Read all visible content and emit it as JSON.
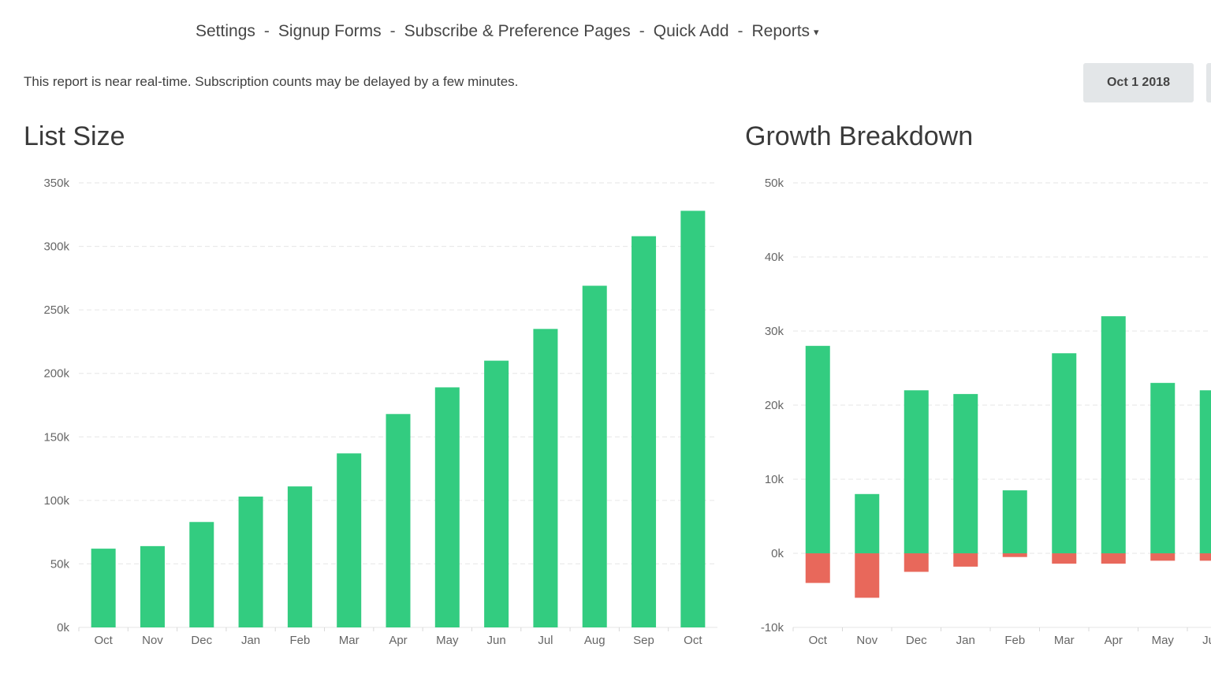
{
  "nav": {
    "items": [
      "Settings",
      "Signup Forms",
      "Subscribe & Preference Pages",
      "Quick Add",
      "Reports"
    ],
    "separator": "-",
    "reports_caret": "▾"
  },
  "notice": "This report is near real-time. Subscription counts may be delayed by a few minutes.",
  "date_button": "Oct 1 2018",
  "colors": {
    "positive": "#33cc80",
    "negative": "#e8685b",
    "grid": "#e6e6e6"
  },
  "chart_data": [
    {
      "type": "bar",
      "title": "List Size",
      "categories": [
        "Oct",
        "Nov",
        "Dec",
        "Jan",
        "Feb",
        "Mar",
        "Apr",
        "May",
        "Jun",
        "Jul",
        "Aug",
        "Sep",
        "Oct"
      ],
      "values": [
        62000,
        64000,
        83000,
        103000,
        111000,
        137000,
        168000,
        189000,
        210000,
        235000,
        269000,
        308000,
        328000
      ],
      "ylim": [
        0,
        350000
      ],
      "yticks": [
        "0k",
        "50k",
        "100k",
        "150k",
        "200k",
        "250k",
        "300k",
        "350k"
      ],
      "grid": true
    },
    {
      "type": "bar",
      "stacked": true,
      "title": "Growth Breakdown",
      "categories": [
        "Oct",
        "Nov",
        "Dec",
        "Jan",
        "Feb",
        "Mar",
        "Apr",
        "May",
        "Jun"
      ],
      "series": [
        {
          "values": [
            28000,
            8000,
            22000,
            21500,
            8500,
            27000,
            32000,
            23000,
            22000
          ]
        },
        {
          "values": [
            -4000,
            -6000,
            -2500,
            -1800,
            -500,
            -1400,
            -1400,
            -1000,
            -1000
          ]
        }
      ],
      "ylim": [
        -10000,
        50000
      ],
      "yticks": [
        "-10k",
        "0k",
        "10k",
        "20k",
        "30k",
        "40k",
        "50k"
      ],
      "grid": true
    }
  ]
}
